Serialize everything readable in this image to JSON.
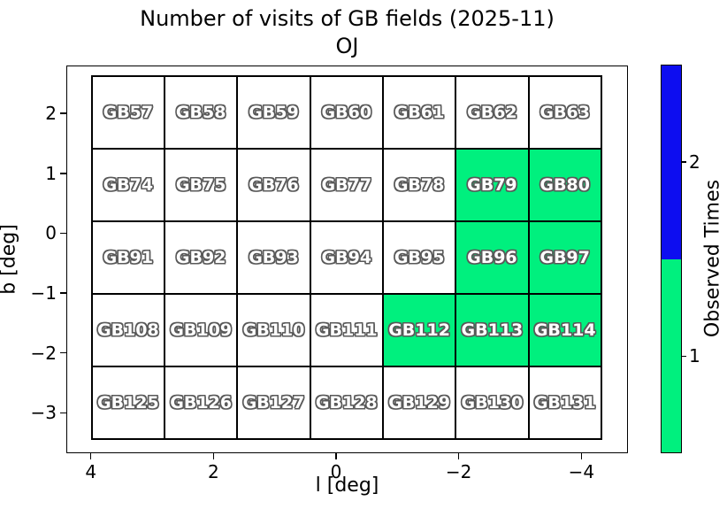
{
  "title": {
    "line1": "Number of visits of GB fields (2025-11)",
    "line2": "OJ"
  },
  "axes": {
    "xlabel": "l [deg]",
    "ylabel": "b [deg]",
    "xlim": [
      4.4,
      -4.76
    ],
    "ylim_bottom": -3.675,
    "ylim_top": 2.8,
    "x_ticks": [
      {
        "value": 4,
        "label": "4"
      },
      {
        "value": 2,
        "label": "2"
      },
      {
        "value": 0,
        "label": "0"
      },
      {
        "value": -2,
        "label": "−2"
      },
      {
        "value": -4,
        "label": "−4"
      }
    ],
    "y_ticks": [
      {
        "value": 2,
        "label": "2"
      },
      {
        "value": 1,
        "label": "1"
      },
      {
        "value": 0,
        "label": "0"
      },
      {
        "value": -1,
        "label": "−1"
      },
      {
        "value": -2,
        "label": "−2"
      },
      {
        "value": -3,
        "label": "−3"
      }
    ]
  },
  "chart_data": {
    "type": "heatmap",
    "title": "Number of visits of GB fields (2025-11)",
    "subtitle": "OJ",
    "xlabel": "l [deg]",
    "ylabel": "b [deg]",
    "x_axis_reversed": true,
    "grid_bounds_deg": {
      "l_left": 4.0,
      "l_right": -4.34,
      "b_top": 2.63,
      "b_bottom": -3.45
    },
    "row_b_centers": [
      2.0,
      0.8,
      -0.4,
      -1.6,
      -2.85
    ],
    "col_l_centers": [
      3.4,
      2.2,
      1.0,
      -0.2,
      -1.4,
      -2.6,
      -3.75
    ],
    "field_names": [
      [
        "GB57",
        "GB58",
        "GB59",
        "GB60",
        "GB61",
        "GB62",
        "GB63"
      ],
      [
        "GB74",
        "GB75",
        "GB76",
        "GB77",
        "GB78",
        "GB79",
        "GB80"
      ],
      [
        "GB91",
        "GB92",
        "GB93",
        "GB94",
        "GB95",
        "GB96",
        "GB97"
      ],
      [
        "GB108",
        "GB109",
        "GB110",
        "GB111",
        "GB112",
        "GB113",
        "GB114"
      ],
      [
        "GB125",
        "GB126",
        "GB127",
        "GB128",
        "GB129",
        "GB130",
        "GB131"
      ]
    ],
    "visit_counts": [
      [
        0,
        0,
        0,
        0,
        0,
        0,
        0
      ],
      [
        0,
        0,
        0,
        0,
        0,
        1,
        1
      ],
      [
        0,
        0,
        0,
        0,
        0,
        1,
        1
      ],
      [
        0,
        0,
        0,
        0,
        1,
        1,
        1
      ],
      [
        0,
        0,
        0,
        0,
        0,
        0,
        0
      ]
    ],
    "visit_colors": {
      "0": "#ffffff",
      "1": "#00F07E",
      "2": "#0D0DF0"
    }
  },
  "colorbar": {
    "label": "Observed Times",
    "segments": [
      {
        "value": 1,
        "label": "1",
        "color": "#00F07E"
      },
      {
        "value": 2,
        "label": "2",
        "color": "#0D0DF0"
      }
    ]
  }
}
